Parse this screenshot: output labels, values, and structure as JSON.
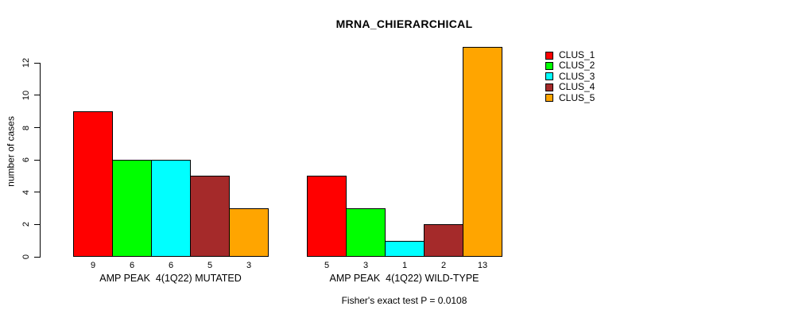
{
  "title": "MRNA_CHIERARCHICAL",
  "annotation": "Fisher's exact test P = 0.0108",
  "chart_data": {
    "type": "bar",
    "title": "MRNA_CHIERARCHICAL",
    "xlabel": "",
    "ylabel": "number of cases",
    "ylim": [
      0,
      13
    ],
    "yticks": [
      0,
      2,
      4,
      6,
      8,
      10,
      12
    ],
    "grid": false,
    "legend_position": "right-outside",
    "background_color": "#ffffff",
    "bar_border_color": "#000000",
    "series": [
      {
        "name": "CLUS_1",
        "color": "#ff0000"
      },
      {
        "name": "CLUS_2",
        "color": "#00ff00"
      },
      {
        "name": "CLUS_3",
        "color": "#00ffff"
      },
      {
        "name": "CLUS_4",
        "color": "#a52a2a"
      },
      {
        "name": "CLUS_5",
        "color": "#ffa500"
      }
    ],
    "groups": [
      {
        "label": "AMP PEAK  4(1Q22) MUTATED",
        "values": [
          9,
          6,
          6,
          5,
          3
        ]
      },
      {
        "label": "AMP PEAK  4(1Q22) WILD-TYPE",
        "values": [
          5,
          3,
          1,
          2,
          13
        ]
      }
    ],
    "bar_count_labels_shown": true,
    "annotation": "Fisher's exact test P = 0.0108"
  }
}
